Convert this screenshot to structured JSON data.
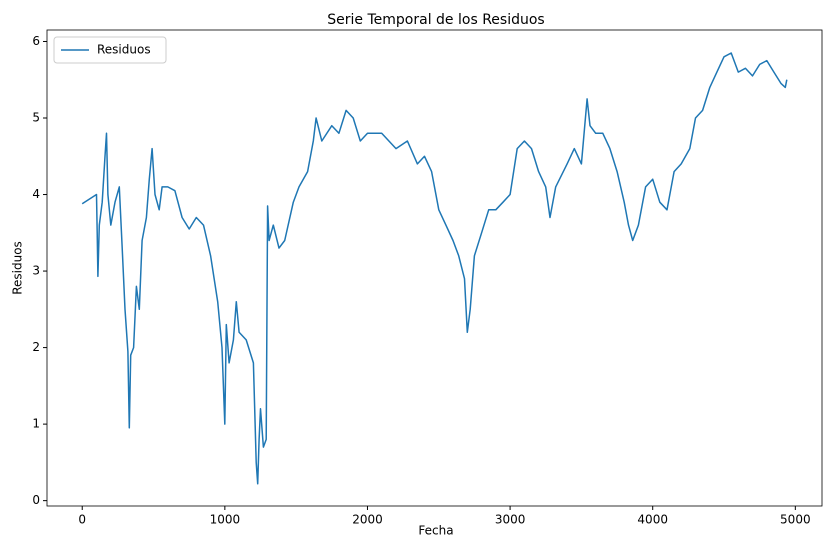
{
  "chart_data": {
    "type": "line",
    "title": "Serie Temporal de los Residuos",
    "x_label": "Fecha",
    "y_label": "Residuos",
    "legend": "upper left",
    "xlim": [
      -247,
      5187
    ],
    "ylim": [
      -0.07,
      6.15
    ],
    "xticks": [
      0,
      1000,
      2000,
      3000,
      4000,
      5000
    ],
    "yticks": [
      0,
      1,
      2,
      3,
      4,
      5,
      6
    ],
    "series": [
      {
        "name": "Residuos",
        "color": "#1f77b4",
        "x": [
          0,
          100,
          105,
          110,
          120,
          140,
          160,
          170,
          180,
          200,
          230,
          260,
          280,
          300,
          320,
          330,
          340,
          360,
          380,
          400,
          420,
          450,
          470,
          490,
          510,
          540,
          560,
          600,
          650,
          700,
          750,
          800,
          850,
          900,
          950,
          980,
          1000,
          1010,
          1030,
          1060,
          1080,
          1100,
          1150,
          1200,
          1220,
          1230,
          1240,
          1250,
          1270,
          1290,
          1300,
          1310,
          1340,
          1380,
          1420,
          1480,
          1520,
          1580,
          1620,
          1640,
          1680,
          1750,
          1800,
          1850,
          1900,
          1950,
          2000,
          2100,
          2200,
          2280,
          2350,
          2400,
          2450,
          2500,
          2550,
          2600,
          2640,
          2680,
          2700,
          2720,
          2750,
          2800,
          2850,
          2900,
          2950,
          3000,
          3050,
          3100,
          3150,
          3200,
          3250,
          3280,
          3320,
          3400,
          3450,
          3500,
          3540,
          3560,
          3600,
          3650,
          3700,
          3750,
          3800,
          3830,
          3860,
          3900,
          3950,
          4000,
          4050,
          4100,
          4150,
          4200,
          4260,
          4300,
          4350,
          4400,
          4450,
          4500,
          4550,
          4600,
          4650,
          4700,
          4750,
          4800,
          4850,
          4900,
          4930,
          4940
        ],
        "values": [
          3.88,
          4.0,
          3.5,
          2.93,
          3.6,
          3.9,
          4.5,
          4.8,
          4.0,
          3.6,
          3.9,
          4.1,
          3.3,
          2.5,
          1.95,
          0.95,
          1.9,
          2.0,
          2.8,
          2.5,
          3.4,
          3.7,
          4.2,
          4.6,
          4.0,
          3.8,
          4.1,
          4.1,
          4.05,
          3.7,
          3.55,
          3.7,
          3.6,
          3.2,
          2.6,
          2.0,
          1.0,
          2.3,
          1.8,
          2.1,
          2.6,
          2.2,
          2.1,
          1.8,
          0.5,
          0.22,
          0.8,
          1.2,
          0.7,
          0.8,
          3.85,
          3.4,
          3.6,
          3.3,
          3.4,
          3.9,
          4.1,
          4.3,
          4.7,
          5.0,
          4.7,
          4.9,
          4.8,
          5.1,
          5.0,
          4.7,
          4.8,
          4.8,
          4.6,
          4.7,
          4.4,
          4.5,
          4.3,
          3.8,
          3.6,
          3.4,
          3.2,
          2.9,
          2.2,
          2.5,
          3.2,
          3.5,
          3.8,
          3.8,
          3.9,
          4.0,
          4.6,
          4.7,
          4.6,
          4.3,
          4.1,
          3.7,
          4.1,
          4.4,
          4.6,
          4.4,
          5.25,
          4.9,
          4.8,
          4.8,
          4.6,
          4.3,
          3.9,
          3.6,
          3.4,
          3.6,
          4.1,
          4.2,
          3.9,
          3.8,
          4.3,
          4.4,
          4.6,
          5.0,
          5.1,
          5.4,
          5.6,
          5.8,
          5.85,
          5.6,
          5.65,
          5.55,
          5.7,
          5.75,
          5.6,
          5.45,
          5.4,
          5.5
        ]
      }
    ]
  }
}
